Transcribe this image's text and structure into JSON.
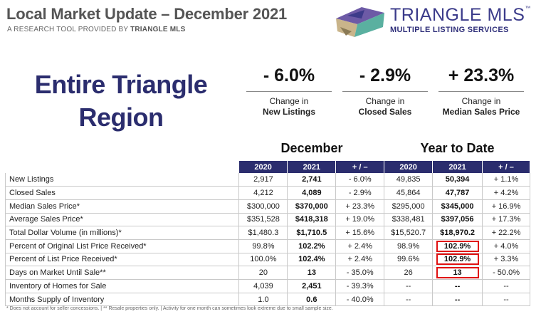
{
  "header": {
    "title": "Local Market Update – December 2021",
    "subtitle_prefix": "A RESEARCH TOOL PROVIDED BY",
    "subtitle_brand": "TRIANGLE MLS"
  },
  "logo": {
    "name": "TRIANGLE MLS",
    "tm": "™",
    "tagline": "MULTIPLE LISTING SERVICES"
  },
  "region": {
    "line1": "Entire Triangle",
    "line2": "Region"
  },
  "kpis": [
    {
      "value": "- 6.0%",
      "label": "Change in",
      "metric": "New Listings"
    },
    {
      "value": "- 2.9%",
      "label": "Change in",
      "metric": "Closed Sales"
    },
    {
      "value": "+ 23.3%",
      "label": "Change in",
      "metric": "Median Sales Price"
    }
  ],
  "sections": {
    "december": "December",
    "ytd": "Year to Date"
  },
  "columns": [
    "2020",
    "2021",
    "+ / –",
    "2020",
    "2021",
    "+ / –"
  ],
  "rows": [
    {
      "label": "New Listings",
      "d2020": "2,917",
      "d2021": "2,741",
      "dchg": "- 6.0%",
      "y2020": "49,835",
      "y2021": "50,394",
      "ychg": "+ 1.1%"
    },
    {
      "label": "Closed Sales",
      "d2020": "4,212",
      "d2021": "4,089",
      "dchg": "- 2.9%",
      "y2020": "45,864",
      "y2021": "47,787",
      "ychg": "+ 4.2%"
    },
    {
      "label": "Median Sales Price*",
      "d2020": "$300,000",
      "d2021": "$370,000",
      "dchg": "+ 23.3%",
      "y2020": "$295,000",
      "y2021": "$345,000",
      "ychg": "+ 16.9%"
    },
    {
      "label": "Average Sales Price*",
      "d2020": "$351,528",
      "d2021": "$418,318",
      "dchg": "+ 19.0%",
      "y2020": "$338,481",
      "y2021": "$397,056",
      "ychg": "+ 17.3%"
    },
    {
      "label": "Total Dollar Volume (in millions)*",
      "d2020": "$1,480.3",
      "d2021": "$1,710.5",
      "dchg": "+ 15.6%",
      "y2020": "$15,520.7",
      "y2021": "$18,970.2",
      "ychg": "+ 22.2%"
    },
    {
      "label": "Percent of Original List Price Received*",
      "d2020": "99.8%",
      "d2021": "102.2%",
      "dchg": "+ 2.4%",
      "y2020": "98.9%",
      "y2021": "102.9%",
      "ychg": "+ 4.0%"
    },
    {
      "label": "Percent of List Price Received*",
      "d2020": "100.0%",
      "d2021": "102.4%",
      "dchg": "+ 2.4%",
      "y2020": "99.6%",
      "y2021": "102.9%",
      "ychg": "+ 3.3%"
    },
    {
      "label": "Days on Market Until Sale**",
      "d2020": "20",
      "d2021": "13",
      "dchg": "- 35.0%",
      "y2020": "26",
      "y2021": "13",
      "ychg": "- 50.0%"
    },
    {
      "label": "Inventory of Homes for Sale",
      "d2020": "4,039",
      "d2021": "2,451",
      "dchg": "- 39.3%",
      "y2020": "--",
      "y2021": "--",
      "ychg": "--"
    },
    {
      "label": "Months Supply of Inventory",
      "d2020": "1.0",
      "d2021": "0.6",
      "dchg": "- 40.0%",
      "y2020": "--",
      "y2021": "--",
      "ychg": "--"
    }
  ],
  "footnote": "* Does not account for seller concessions.  |  ** Resale properties only.  |  Activity for one month can sometimes look extreme due to small sample size.",
  "colors": {
    "navy": "#2b2d6e",
    "highlight": "#e01010"
  }
}
